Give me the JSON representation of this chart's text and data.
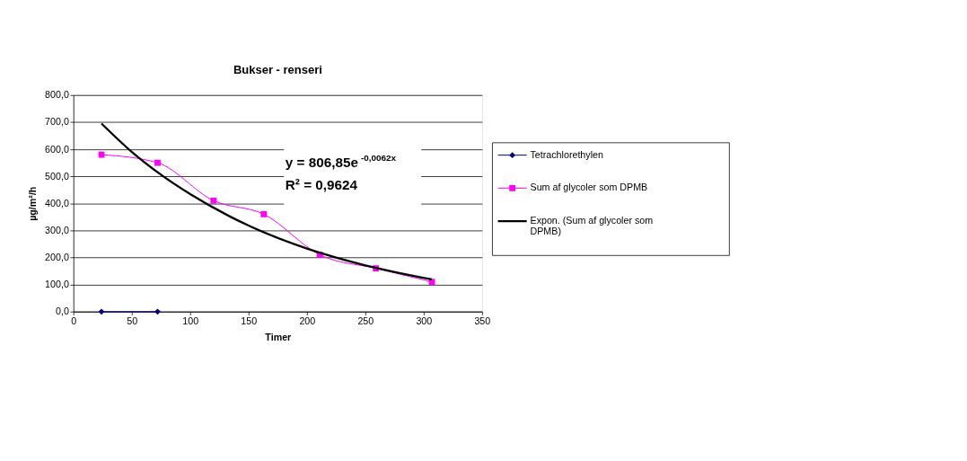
{
  "chart_data": {
    "type": "line",
    "title": "Bukser - renseri",
    "xlabel": "Timer",
    "ylabel": "µg/m²/h",
    "x": [
      24,
      72,
      120,
      163,
      211,
      259,
      307
    ],
    "series": [
      {
        "name": "Tetrachlorethylen",
        "color": "#000080",
        "marker": "diamond",
        "x": [
          24,
          72
        ],
        "values": [
          0,
          0
        ]
      },
      {
        "name": "Sum af glycoler som DPMB",
        "color": "#ff00ff",
        "marker": "square",
        "values": [
          580,
          550,
          410,
          360,
          210,
          160,
          110
        ]
      },
      {
        "name": "Expon. (Sum af glycoler som DPMB)",
        "color": "#000000",
        "type": "line",
        "marker": "none",
        "x": [
          24,
          50,
          72,
          100,
          150,
          200,
          250,
          307
        ],
        "values": [
          695,
          590,
          515,
          434,
          318,
          233,
          171,
          119
        ]
      }
    ],
    "xlim": [
      0,
      350
    ],
    "xticks": [
      0,
      50,
      100,
      150,
      200,
      250,
      300,
      350
    ],
    "ylim": [
      0,
      800
    ],
    "yticks": [
      {
        "value": 0,
        "label": "0,0"
      },
      {
        "value": 100,
        "label": "100,0"
      },
      {
        "value": 200,
        "label": "200,0"
      },
      {
        "value": 300,
        "label": "300,0"
      },
      {
        "value": 400,
        "label": "400,0"
      },
      {
        "value": 500,
        "label": "500,0"
      },
      {
        "value": 600,
        "label": "600,0"
      },
      {
        "value": 700,
        "label": "700,0"
      },
      {
        "value": 800,
        "label": "800,0"
      }
    ],
    "grid": "y",
    "legend": "right",
    "annotations": [
      "y = 806,85e$^{-0,0062x}$",
      "R² = 0,9624"
    ]
  }
}
